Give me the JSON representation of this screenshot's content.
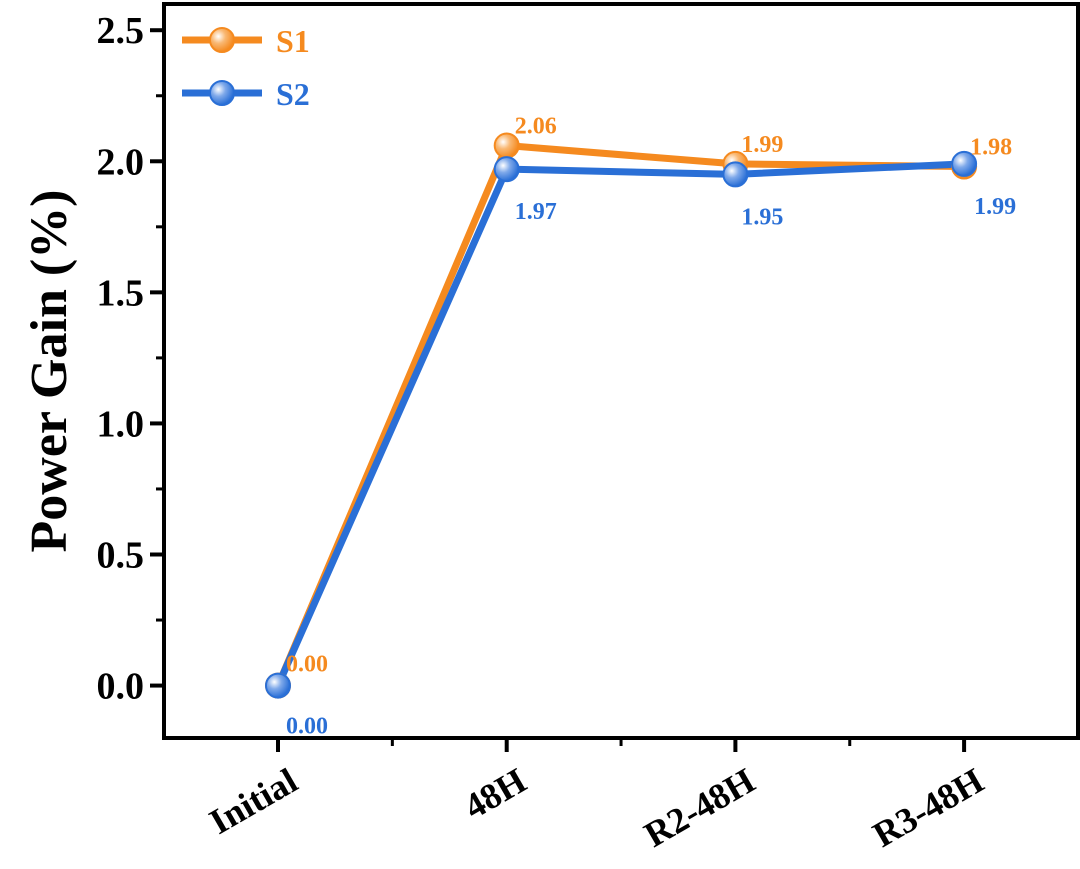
{
  "chart_data": {
    "type": "line",
    "title": "",
    "xlabel": "",
    "ylabel": "Power Gain (%)",
    "categories": [
      "Initial",
      "48H",
      "R2-48H",
      "R3-48H"
    ],
    "ylim": [
      -0.2,
      2.6
    ],
    "yticks": [
      "0.0",
      "0.5",
      "1.0",
      "1.5",
      "2.0",
      "2.5"
    ],
    "ytick_values": [
      0,
      0.5,
      1.0,
      1.5,
      2.0,
      2.5
    ],
    "legend_position": "top-left",
    "series": [
      {
        "name": "S1",
        "color": "#F58A1F",
        "values": [
          0.0,
          2.06,
          1.99,
          1.98
        ],
        "labels": [
          "0.00",
          "2.06",
          "1.99",
          "1.98"
        ]
      },
      {
        "name": "S2",
        "color": "#2A6FD6",
        "values": [
          0.0,
          1.97,
          1.95,
          1.99
        ],
        "labels": [
          "0.00",
          "1.97",
          "1.95",
          "1.99"
        ]
      }
    ]
  }
}
